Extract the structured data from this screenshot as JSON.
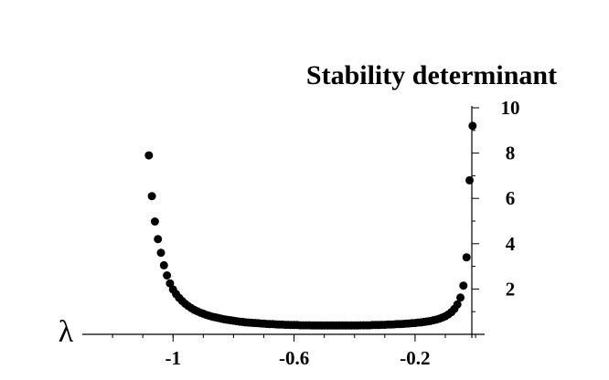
{
  "chart_data": {
    "type": "scatter",
    "title": "Stability determinant",
    "xlabel": "λ",
    "ylabel": "",
    "xlim": [
      -1.3,
      0.03
    ],
    "ylim": [
      0,
      10
    ],
    "x_ticks": [
      -1,
      -0.6,
      -0.2
    ],
    "x_tick_labels": [
      "-1",
      "-0.6",
      "-0.2"
    ],
    "y_ticks": [
      2,
      4,
      6,
      8,
      10
    ],
    "y_tick_labels": [
      "2",
      "4",
      "6",
      "8",
      "10"
    ],
    "grid": false,
    "legend": "none",
    "point_color": "#000000",
    "series": [
      {
        "x": [
          -1.08,
          -1.07,
          -1.06,
          -1.05,
          -1.04,
          -1.03,
          -1.02,
          -1.01,
          -1.0,
          -0.99,
          -0.98,
          -0.97,
          -0.96,
          -0.95,
          -0.94,
          -0.93,
          -0.92,
          -0.91,
          -0.9,
          -0.89,
          -0.88,
          -0.87,
          -0.86,
          -0.85,
          -0.84,
          -0.83,
          -0.82,
          -0.81,
          -0.8,
          -0.79,
          -0.78,
          -0.77,
          -0.76,
          -0.75,
          -0.74,
          -0.73,
          -0.72,
          -0.71,
          -0.7,
          -0.69,
          -0.68,
          -0.67,
          -0.66,
          -0.65,
          -0.64,
          -0.63,
          -0.62,
          -0.61,
          -0.6,
          -0.59,
          -0.58,
          -0.57,
          -0.56,
          -0.55,
          -0.54,
          -0.53,
          -0.52,
          -0.51,
          -0.5,
          -0.49,
          -0.48,
          -0.47,
          -0.46,
          -0.45,
          -0.44,
          -0.43,
          -0.42,
          -0.41,
          -0.4,
          -0.39,
          -0.38,
          -0.37,
          -0.36,
          -0.35,
          -0.34,
          -0.33,
          -0.32,
          -0.31,
          -0.3,
          -0.29,
          -0.28,
          -0.27,
          -0.26,
          -0.25,
          -0.24,
          -0.23,
          -0.22,
          -0.21,
          -0.2,
          -0.19,
          -0.18,
          -0.17,
          -0.16,
          -0.15,
          -0.14,
          -0.13,
          -0.12,
          -0.11,
          -0.1,
          -0.09,
          -0.08,
          -0.07,
          -0.06,
          -0.05,
          -0.04,
          -0.03,
          -0.02,
          -0.01
        ],
        "y": [
          7.9,
          6.1,
          4.98,
          4.2,
          3.6,
          3.05,
          2.6,
          2.25,
          1.98,
          1.78,
          1.61,
          1.47,
          1.35,
          1.25,
          1.16,
          1.08,
          1.02,
          0.96,
          0.91,
          0.86,
          0.82,
          0.78,
          0.75,
          0.72,
          0.69,
          0.66,
          0.64,
          0.62,
          0.6,
          0.58,
          0.56,
          0.55,
          0.53,
          0.52,
          0.51,
          0.5,
          0.49,
          0.48,
          0.47,
          0.46,
          0.45,
          0.45,
          0.44,
          0.43,
          0.43,
          0.42,
          0.42,
          0.41,
          0.41,
          0.41,
          0.4,
          0.4,
          0.4,
          0.4,
          0.39,
          0.39,
          0.39,
          0.39,
          0.39,
          0.39,
          0.39,
          0.39,
          0.39,
          0.39,
          0.39,
          0.39,
          0.39,
          0.39,
          0.39,
          0.39,
          0.4,
          0.4,
          0.4,
          0.4,
          0.41,
          0.41,
          0.41,
          0.42,
          0.42,
          0.43,
          0.43,
          0.44,
          0.45,
          0.45,
          0.46,
          0.47,
          0.48,
          0.49,
          0.5,
          0.52,
          0.53,
          0.55,
          0.57,
          0.59,
          0.62,
          0.65,
          0.69,
          0.74,
          0.8,
          0.88,
          0.98,
          1.12,
          1.32,
          1.62,
          2.15,
          3.4,
          6.8,
          9.2
        ]
      }
    ]
  }
}
